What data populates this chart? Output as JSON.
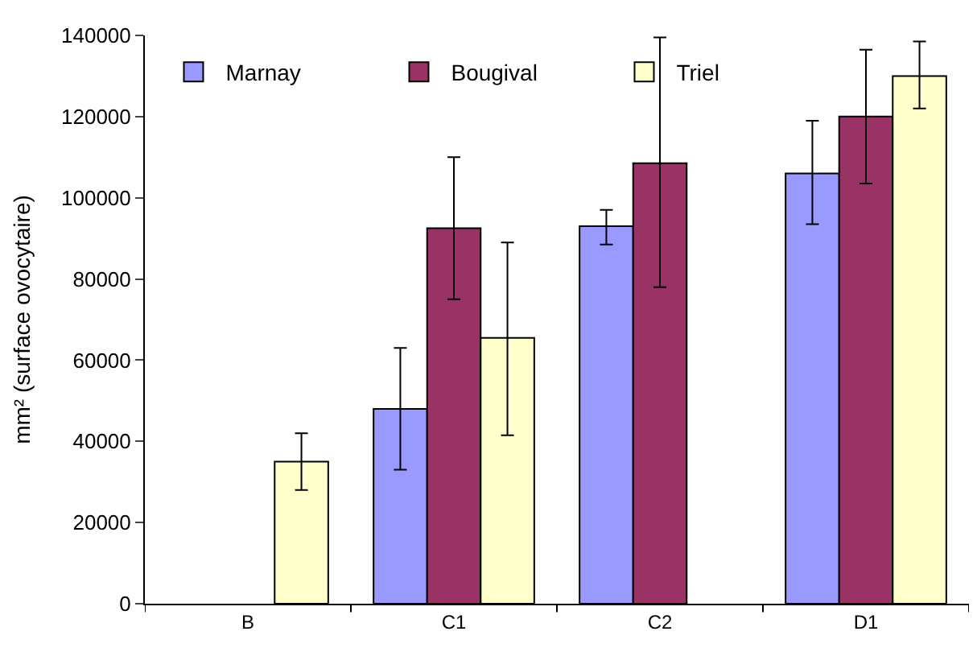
{
  "chart_data": {
    "type": "bar",
    "ylabel": "mm² (surface ovocytaire)",
    "categories": [
      "B",
      "C1",
      "C2",
      "D1"
    ],
    "series": [
      {
        "name": "Marnay",
        "color": "#9999ff",
        "values": [
          null,
          48000,
          93000,
          106000
        ],
        "errors": [
          null,
          [
            33000,
            63000
          ],
          [
            88500,
            97000
          ],
          [
            93500,
            119000
          ]
        ]
      },
      {
        "name": "Bougival",
        "color": "#993366",
        "values": [
          null,
          92500,
          108500,
          120000
        ],
        "errors": [
          null,
          [
            75000,
            110000
          ],
          [
            78000,
            139500
          ],
          [
            103500,
            136500
          ]
        ]
      },
      {
        "name": "Triel",
        "color": "#ffffcc",
        "values": [
          35000,
          65500,
          null,
          130000
        ],
        "errors": [
          [
            28000,
            42000
          ],
          [
            41500,
            89000
          ],
          null,
          [
            122000,
            138500
          ]
        ]
      }
    ],
    "ylim": [
      0,
      140000
    ],
    "yticks": [
      0,
      20000,
      40000,
      60000,
      80000,
      100000,
      120000,
      140000
    ],
    "grid": false,
    "legend": "top left"
  }
}
